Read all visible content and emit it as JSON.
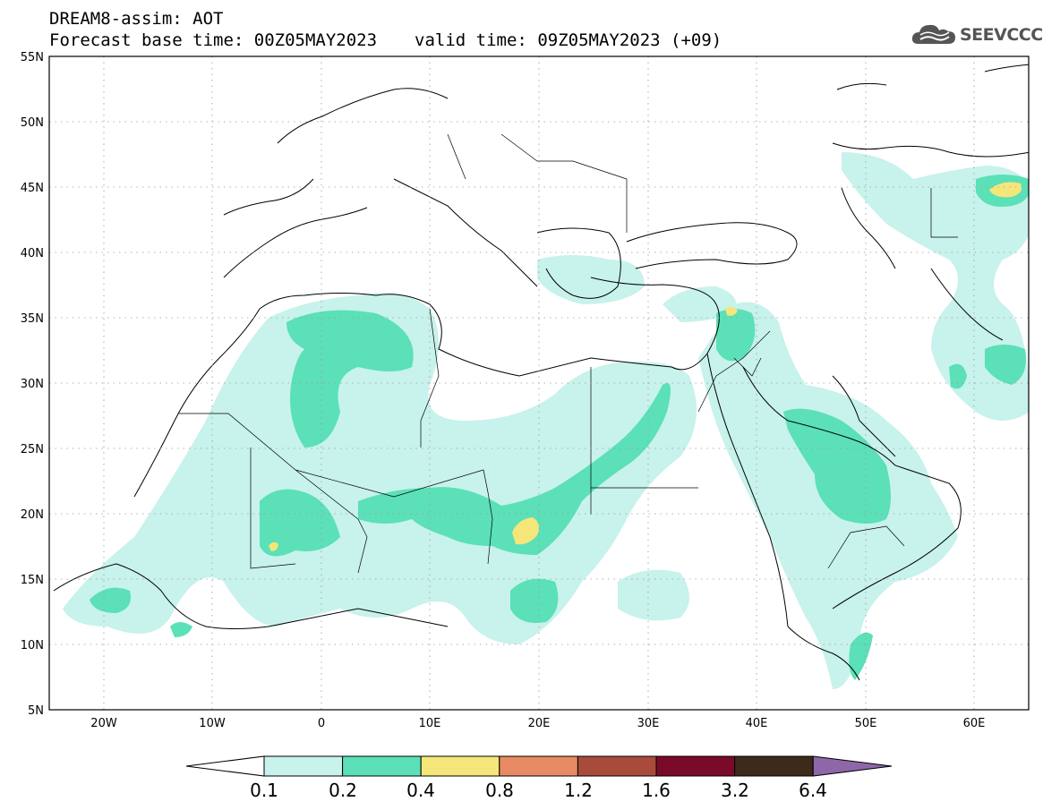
{
  "header": {
    "title_line1": "DREAM8-assim: AOT",
    "base_time": "Forecast base time: 00Z05MAY2023",
    "valid_time": "valid time: 09Z05MAY2023 (+09)",
    "logo_text": "SEEVCCC"
  },
  "map": {
    "lon_range": [
      -25,
      65
    ],
    "lat_range": [
      5,
      55
    ],
    "lat_ticks": [
      "55N",
      "50N",
      "45N",
      "40N",
      "35N",
      "30N",
      "25N",
      "20N",
      "15N",
      "10N",
      "5N"
    ],
    "lon_ticks": [
      "20W",
      "10W",
      "0",
      "10E",
      "20E",
      "30E",
      "40E",
      "50E",
      "60E"
    ]
  },
  "legend": {
    "labels": [
      "0.1",
      "0.2",
      "0.4",
      "0.8",
      "1.2",
      "1.6",
      "3.2",
      "6.4"
    ],
    "colors": [
      "#ffffff",
      "#c8f2ec",
      "#5be0b8",
      "#f5e67a",
      "#e88a63",
      "#a94b3b",
      "#7a0a2a",
      "#3d2a1a",
      "#8e67a8"
    ]
  }
}
